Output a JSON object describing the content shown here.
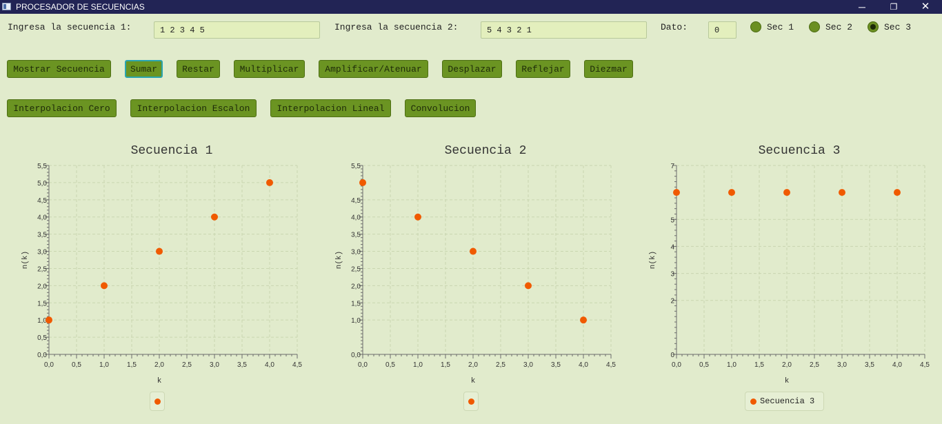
{
  "window": {
    "title": "PROCESADOR DE SECUENCIAS",
    "controls": {
      "minimize": "─",
      "maximize": "❐",
      "close": "✕"
    }
  },
  "inputs": {
    "seq1_label": "Ingresa la secuencia 1:",
    "seq1_value": "1 2 3 4 5",
    "seq2_label": "Ingresa la secuencia 2:",
    "seq2_value": "5 4 3 2 1",
    "dato_label": "Dato:",
    "dato_value": "0"
  },
  "radios": [
    {
      "label": "Sec 1",
      "selected": false
    },
    {
      "label": "Sec 2",
      "selected": false
    },
    {
      "label": "Sec 3",
      "selected": true
    }
  ],
  "buttons_row1": [
    "Mostrar Secuencia",
    "Sumar",
    "Restar",
    "Multiplicar",
    "Amplificar/Atenuar",
    "Desplazar",
    "Reflejar",
    "Diezmar"
  ],
  "buttons_row2": [
    "Interpolacion Cero",
    "Interpolacion Escalon",
    "Interpolacion Lineal",
    "Convolucion"
  ],
  "colors": {
    "point": "#f05a00",
    "button": "#6b9422",
    "background": "#e1ebcc",
    "titlebar": "#222455"
  },
  "chart_data": [
    {
      "type": "scatter",
      "title": "Secuencia 1",
      "xlabel": "k",
      "ylabel": "n(k)",
      "xlim": [
        0,
        4.5
      ],
      "ylim": [
        0,
        5.5
      ],
      "xticks": [
        "0,0",
        "0,5",
        "1,0",
        "1,5",
        "2,0",
        "2,5",
        "3,0",
        "3,5",
        "4,0",
        "4,5"
      ],
      "yticks": [
        "0,0",
        "0,5",
        "1,0",
        "1,5",
        "2,0",
        "2,5",
        "3,0",
        "3,5",
        "4,0",
        "4,5",
        "5,0",
        "5,5"
      ],
      "ytick_values": [
        0,
        0.5,
        1,
        1.5,
        2,
        2.5,
        3,
        3.5,
        4,
        4.5,
        5,
        5.5
      ],
      "x": [
        0,
        1,
        2,
        3,
        4
      ],
      "y": [
        1,
        2,
        3,
        4,
        5
      ],
      "legend": ""
    },
    {
      "type": "scatter",
      "title": "Secuencia 2",
      "xlabel": "k",
      "ylabel": "n(k)",
      "xlim": [
        0,
        4.5
      ],
      "ylim": [
        0,
        5.5
      ],
      "xticks": [
        "0,0",
        "0,5",
        "1,0",
        "1,5",
        "2,0",
        "2,5",
        "3,0",
        "3,5",
        "4,0",
        "4,5"
      ],
      "yticks": [
        "0,0",
        "1,0",
        "1,5",
        "2,0",
        "2,5",
        "3,0",
        "3,5",
        "4,0",
        "4,5",
        "5,5"
      ],
      "ytick_values": [
        0,
        1,
        1.5,
        2,
        2.5,
        3,
        3.5,
        4,
        4.5,
        5.5
      ],
      "x": [
        0,
        1,
        2,
        3,
        4
      ],
      "y": [
        5,
        4,
        3,
        2,
        1
      ],
      "legend": ""
    },
    {
      "type": "scatter",
      "title": "Secuencia 3",
      "xlabel": "k",
      "ylabel": "n(k)",
      "xlim": [
        0,
        4.5
      ],
      "ylim": [
        0,
        7
      ],
      "xticks": [
        "0,0",
        "0,5",
        "1,0",
        "1,5",
        "2,0",
        "2,5",
        "3,0",
        "3,5",
        "4,0",
        "4,5"
      ],
      "yticks": [
        "0",
        "2",
        "3",
        "4",
        "5",
        "7"
      ],
      "ytick_values": [
        0,
        2,
        3,
        4,
        5,
        7
      ],
      "x": [
        0,
        1,
        2,
        3,
        4
      ],
      "y": [
        6,
        6,
        6,
        6,
        6
      ],
      "legend": "Secuencia 3"
    }
  ]
}
